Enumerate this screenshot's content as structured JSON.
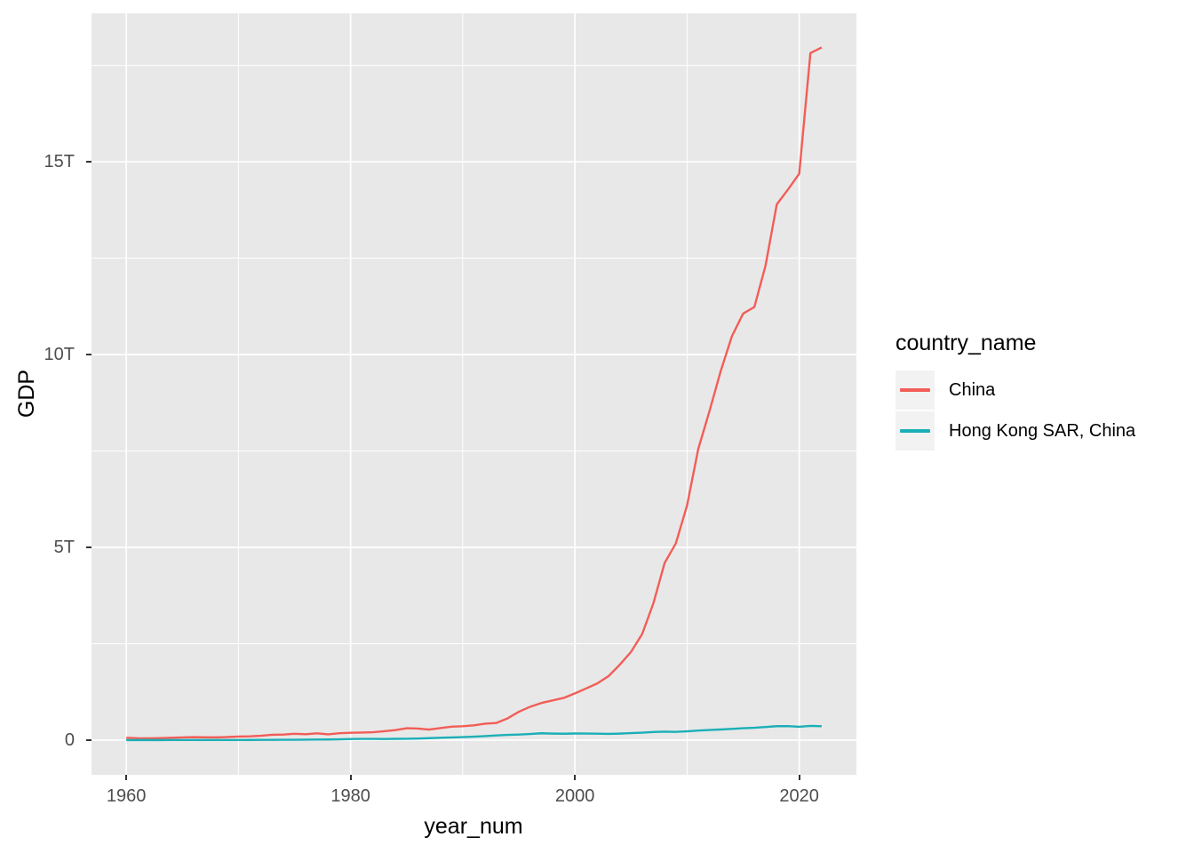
{
  "chart_data": {
    "type": "line",
    "title": "",
    "xlabel": "year_num",
    "ylabel": "GDP",
    "legend_title": "country_name",
    "legend_position": "right",
    "grid": "major+minor",
    "panel_bg": "#E8E8E8",
    "grid_color": "#FFFFFF",
    "tick_color": "#333333",
    "tick_label_color": "#4D4D4D",
    "xlim": [
      1956.9,
      2025.1
    ],
    "ylim": [
      -0.9,
      18.85
    ],
    "x_ticks": {
      "values": [
        1960,
        1980,
        2000,
        2020
      ],
      "labels": [
        "1960",
        "1980",
        "2000",
        "2020"
      ]
    },
    "y_ticks": {
      "values": [
        0,
        5,
        10,
        15
      ],
      "labels": [
        "0",
        "5T",
        "10T",
        "15T"
      ]
    },
    "x_minor": [
      1970,
      1990,
      2010
    ],
    "y_minor": [
      2.5,
      7.5,
      12.5,
      17.5
    ],
    "x": [
      1960,
      1961,
      1962,
      1963,
      1964,
      1965,
      1966,
      1967,
      1968,
      1969,
      1970,
      1971,
      1972,
      1973,
      1974,
      1975,
      1976,
      1977,
      1978,
      1979,
      1980,
      1981,
      1982,
      1983,
      1984,
      1985,
      1986,
      1987,
      1988,
      1989,
      1990,
      1991,
      1992,
      1993,
      1994,
      1995,
      1996,
      1997,
      1998,
      1999,
      2000,
      2001,
      2002,
      2003,
      2004,
      2005,
      2006,
      2007,
      2008,
      2009,
      2010,
      2011,
      2012,
      2013,
      2014,
      2015,
      2016,
      2017,
      2018,
      2019,
      2020,
      2021,
      2022
    ],
    "y_unit": "trillion USD",
    "series": [
      {
        "name": "China",
        "color": "#F25D57",
        "values": [
          0.0597,
          0.0501,
          0.0472,
          0.0507,
          0.0598,
          0.0702,
          0.0767,
          0.0724,
          0.0707,
          0.0795,
          0.0926,
          0.099,
          0.1132,
          0.1386,
          0.1442,
          0.1634,
          0.1539,
          0.1749,
          0.1495,
          0.1784,
          0.1911,
          0.1959,
          0.205,
          0.2306,
          0.2599,
          0.3095,
          0.3009,
          0.2727,
          0.3121,
          0.3478,
          0.3609,
          0.3834,
          0.4267,
          0.4447,
          0.5643,
          0.7345,
          0.8638,
          0.9616,
          1.0294,
          1.094,
          1.2113,
          1.3394,
          1.4705,
          1.6602,
          1.9553,
          2.286,
          2.7522,
          3.5503,
          4.5943,
          5.1017,
          6.0871,
          7.5515,
          8.5323,
          9.5704,
          10.4756,
          11.0616,
          11.2333,
          12.3104,
          13.8949,
          14.2799,
          14.6877,
          17.8205,
          17.9632
        ]
      },
      {
        "name": "Hong Kong SAR, China",
        "color": "#1BAFB7",
        "values": [
          0.0013,
          0.0014,
          0.0016,
          0.0018,
          0.002,
          0.0024,
          0.0026,
          0.0027,
          0.0029,
          0.0034,
          0.0038,
          0.0044,
          0.0054,
          0.0069,
          0.0082,
          0.0089,
          0.0113,
          0.0135,
          0.0163,
          0.0211,
          0.0289,
          0.0311,
          0.0324,
          0.0296,
          0.0335,
          0.0357,
          0.0415,
          0.0507,
          0.0599,
          0.0686,
          0.0769,
          0.0889,
          0.1043,
          0.1203,
          0.1356,
          0.1446,
          0.1597,
          0.1774,
          0.1687,
          0.1656,
          0.1717,
          0.1694,
          0.1664,
          0.1615,
          0.169,
          0.1816,
          0.1935,
          0.2113,
          0.2196,
          0.2143,
          0.2286,
          0.2487,
          0.2626,
          0.2754,
          0.2914,
          0.3093,
          0.3209,
          0.3412,
          0.3617,
          0.3631,
          0.3449,
          0.3692,
          0.3597
        ]
      }
    ]
  }
}
